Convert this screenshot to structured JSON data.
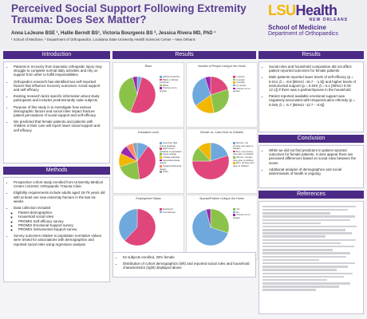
{
  "header": {
    "title": "Perceived Social Support Following Extremity Trauma:  Does Sex Matter?",
    "authors": "Anna LeJeune BSE ¹, Hallie Berndt BS¹, Victoria Bourgeois BS ², Jessica Rivera MD, PhD ¹",
    "affiliations": "¹ School of Medicine, ² Department of Orthopaedics, Louisiana State University Health Sciences Center – New Orleans",
    "logo": {
      "lsu": "LSU",
      "health": "Health",
      "new_orleans": "NEW ORLEANS",
      "school": "School of Medicine",
      "department": "Department of Orthopaedics"
    }
  },
  "introduction": {
    "heading": "Introduction",
    "bullets": [
      "Patients in recovery from traumatic orthopedic injury may struggle to complete normal daily activities and rely on support from other to fulfill responsibilities",
      "Orthopedics research has identified two self-reported factors that influence recovery outcomes: social support and self-efficacy",
      "Existing research lacks specific information about study participants and includes predominantly male subjects",
      "Purpose of this study is to investigate how various demographic factors and social roles impact fracture patient perceptions of social support and self-efficacy",
      "We predicted that female patients and patients with children in their care will report lower social support and self efficacy"
    ]
  },
  "methods": {
    "heading": "Methods",
    "bullets": [
      "Prospective cohort study enrolled from University Medical Center LSUHSC Orthopaedic Trauma Clinic",
      "Eligibility requirements include adults aged 18-79 years old with at least one new extremity fracture in the last six weeks",
      "Data collection included"
    ],
    "sub_bullets": [
      "Patient demographics",
      "Household social roles",
      "PROMIS Self-efficacy survey",
      "PROMIS Emotional Support survey",
      "PROMIS Instrumental Support survey"
    ],
    "closing": "Survey outcomes relative to population normative values were tested for associations with demographics and reported social roles using regression analysis"
  },
  "results_center": {
    "heading": "Results",
    "notes": [
      "52 subjects enrolled, 33% female",
      "Distribution of cohort demographics (left) and reported social roles and household characteristics (right) displayed above"
    ]
  },
  "charts": [
    {
      "title": "Race",
      "legend": [
        "African American",
        "Black or African American",
        "White",
        "Choose not to answer"
      ],
      "colors": [
        "#6fa8dc",
        "#e0457b",
        "#8bc34a",
        "#9c27b0"
      ],
      "values": [
        4,
        52,
        40,
        4
      ]
    },
    {
      "title": "Number of People Living in the Home",
      "legend": [
        "1 person",
        "2 people",
        "3 people",
        "4+ people",
        "Choose not to answer"
      ],
      "colors": [
        "#e0457b",
        "#8bc34a",
        "#f2b700",
        "#6fa8dc",
        "#9c27b0"
      ],
      "values": [
        20,
        27,
        18,
        30,
        5
      ]
    },
    {
      "title": "Education Level",
      "legend": [
        "Less than high school graduate",
        "High school graduate or equivalent",
        "Some college",
        "College graduate",
        "Associate's/trade degree",
        "Advanced/doctoral degree",
        "Other"
      ],
      "colors": [
        "#6fa8dc",
        "#e0457b",
        "#8bc34a",
        "#f2b700",
        "#9c27b0",
        "#ff8a65",
        "#90a4ae"
      ],
      "values": [
        10,
        38,
        22,
        12,
        8,
        6,
        4
      ]
    },
    {
      "title": "Gender vs. Care-Giver to Children",
      "legend": [
        "Women, not primary care giver to children",
        "Men, not primary care giver to children",
        "Women, primary care giver to children",
        "Men, primary care giver to children"
      ],
      "colors": [
        "#6fa8dc",
        "#e0457b",
        "#8bc34a",
        "#f2b700"
      ],
      "values": [
        20,
        55,
        13,
        12
      ]
    },
    {
      "title": "Employment Status",
      "legend": [
        "Employed",
        "Unemployed"
      ],
      "colors": [
        "#e0457b",
        "#6fa8dc"
      ],
      "values": [
        62,
        38
      ]
    },
    {
      "title": "Spouse/Partner Living in the Home",
      "legend": [
        "Yes",
        "No",
        "Choose not to answer"
      ],
      "colors": [
        "#8bc34a",
        "#6fa8dc",
        "#9c27b0"
      ],
      "values": [
        30,
        66,
        4
      ]
    }
  ],
  "results_right": {
    "heading": "Results",
    "bullets": [
      "Social roles and household composition did not affect patient reported outcomes for female patients",
      "Male patients reported lower levels of self-efficacy (p = 0.014, β = -8.8 [95%CI -15.7 - -1.9]) and higher levels of instrumental support (p = 0.049, β = 6.1 [95%CI 0.03-12.1]) if there was a partner/spouse in the household",
      "Patient reported available emotional support was negatively associated with Hispanic/Latinx ethnicity (p = 0.049, β = -6.7 [95%CI -12.7 - -0.6])"
    ]
  },
  "conclusion": {
    "heading": "Conclusion",
    "bullets": [
      "While we did not find predictors in patient reported outcomes for female patients, it does appear there are perceived differences based on social roles between the sexes",
      "Additional analysis of demographics and social determinants of health is ongoing"
    ]
  },
  "references": {
    "heading": "References"
  }
}
